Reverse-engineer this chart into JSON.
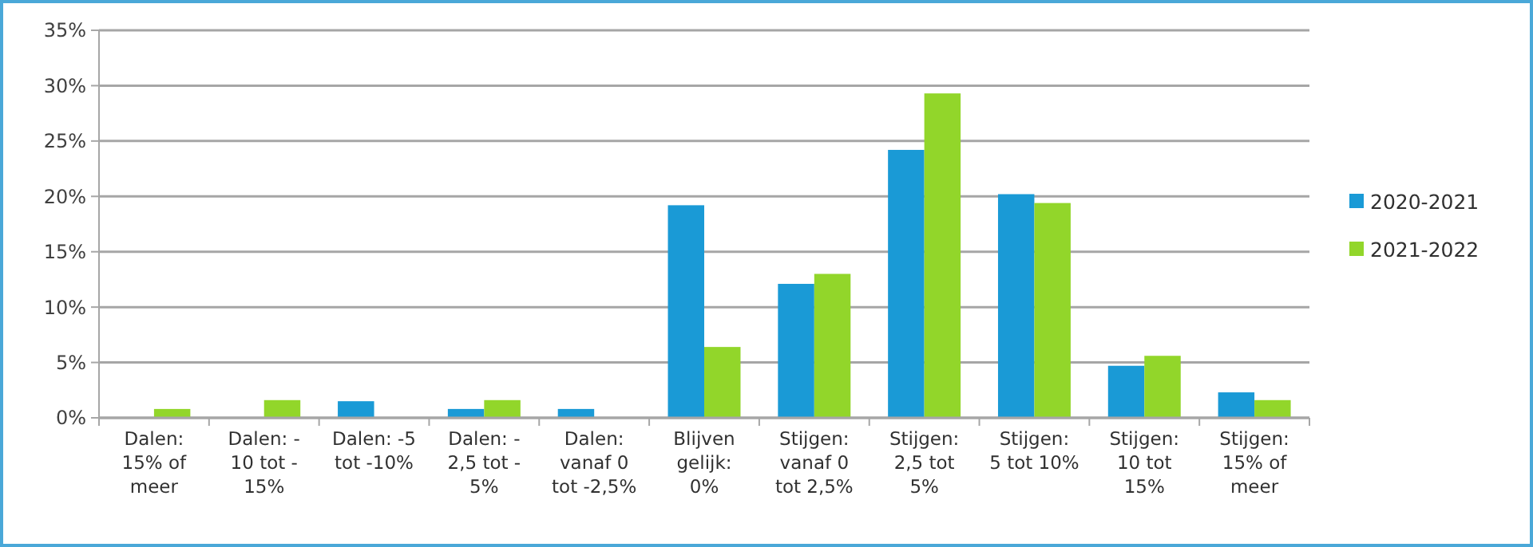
{
  "chart_data": {
    "type": "bar",
    "categories": [
      "Dalen: 15% of meer",
      "Dalen: - 10 tot - 15%",
      "Dalen: -5 tot -10%",
      "Dalen: - 2,5 tot - 5%",
      "Dalen: vanaf 0 tot -2,5%",
      "Blijven gelijk: 0%",
      "Stijgen: vanaf 0 tot 2,5%",
      "Stijgen: 2,5 tot 5%",
      "Stijgen: 5 tot 10%",
      "Stijgen: 10 tot 15%",
      "Stijgen: 15% of meer"
    ],
    "series": [
      {
        "name": "2020-2021",
        "color": "#1a9ad6",
        "values": [
          0,
          0,
          1.5,
          0.8,
          0.8,
          19.2,
          12.1,
          24.2,
          20.2,
          4.7,
          2.3
        ]
      },
      {
        "name": "2021-2022",
        "color": "#92d62a",
        "values": [
          0.8,
          1.6,
          0,
          1.6,
          0,
          6.4,
          13,
          29.3,
          19.4,
          5.6,
          1.6
        ]
      }
    ],
    "ylim": [
      0,
      35
    ],
    "yticks": [
      {
        "value": 0,
        "label": "0%"
      },
      {
        "value": 5,
        "label": "5%"
      },
      {
        "value": 10,
        "label": "10%"
      },
      {
        "value": 15,
        "label": "15%"
      },
      {
        "value": 20,
        "label": "20%"
      },
      {
        "value": 25,
        "label": "25%"
      },
      {
        "value": 30,
        "label": "30%"
      },
      {
        "value": 35,
        "label": "35%"
      }
    ],
    "grid": "y",
    "legend": "right"
  }
}
